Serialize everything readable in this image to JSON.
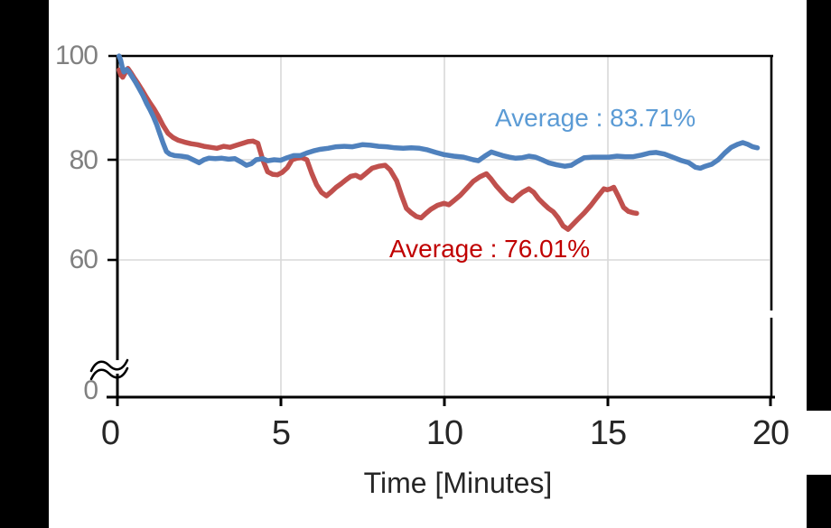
{
  "chart_data": {
    "type": "line",
    "title": "",
    "xlabel": "Time [Minutes]",
    "ylabel": "",
    "x_tick_labels": [
      "0",
      "5",
      "10",
      "15",
      "20"
    ],
    "y_tick_labels": [
      "100",
      "80",
      "60",
      "0"
    ],
    "xlim": [
      0,
      20
    ],
    "ylim": [
      0,
      100
    ],
    "y_axis_break": "axis broken between 0 and ~55 (wavy break mark on y-axis)",
    "grid": true,
    "legend_position": "none (inline colored annotations)",
    "series": [
      {
        "name": "series-blue",
        "color": "#4F81BD",
        "average_percent": 83.71,
        "annotation": {
          "text": "Average : 83.71%",
          "color": "#5B9BD5"
        },
        "points": [
          [
            0.05,
            100
          ],
          [
            0.1,
            99.2
          ],
          [
            0.15,
            97.8
          ],
          [
            0.2,
            96.9
          ],
          [
            0.28,
            97.4
          ],
          [
            0.35,
            97.0
          ],
          [
            0.45,
            96.0
          ],
          [
            0.55,
            95.0
          ],
          [
            0.65,
            93.9
          ],
          [
            0.78,
            92.4
          ],
          [
            0.9,
            90.8
          ],
          [
            1.0,
            89.6
          ],
          [
            1.1,
            88.3
          ],
          [
            1.2,
            86.8
          ],
          [
            1.3,
            85.0
          ],
          [
            1.4,
            83.2
          ],
          [
            1.5,
            81.6
          ],
          [
            1.6,
            81.1
          ],
          [
            1.75,
            80.8
          ],
          [
            1.95,
            80.7
          ],
          [
            2.15,
            80.5
          ],
          [
            2.35,
            79.9
          ],
          [
            2.5,
            79.4
          ],
          [
            2.65,
            80.0
          ],
          [
            2.8,
            80.3
          ],
          [
            3.0,
            80.2
          ],
          [
            3.2,
            80.3
          ],
          [
            3.4,
            80.1
          ],
          [
            3.6,
            80.2
          ],
          [
            3.8,
            79.5
          ],
          [
            3.95,
            78.9
          ],
          [
            4.1,
            79.2
          ],
          [
            4.25,
            80.0
          ],
          [
            4.45,
            80.2
          ],
          [
            4.6,
            79.8
          ],
          [
            4.8,
            80.0
          ],
          [
            5.0,
            79.9
          ],
          [
            5.2,
            80.4
          ],
          [
            5.4,
            80.8
          ],
          [
            5.6,
            80.8
          ],
          [
            5.8,
            81.3
          ],
          [
            6.0,
            81.7
          ],
          [
            6.2,
            82.0
          ],
          [
            6.45,
            82.2
          ],
          [
            6.7,
            82.5
          ],
          [
            6.95,
            82.6
          ],
          [
            7.2,
            82.5
          ],
          [
            7.5,
            82.9
          ],
          [
            7.75,
            82.8
          ],
          [
            8.0,
            82.6
          ],
          [
            8.25,
            82.5
          ],
          [
            8.5,
            82.3
          ],
          [
            8.75,
            82.2
          ],
          [
            9.0,
            82.3
          ],
          [
            9.25,
            82.2
          ],
          [
            9.5,
            81.9
          ],
          [
            9.75,
            81.4
          ],
          [
            10.0,
            81.0
          ],
          [
            10.3,
            80.7
          ],
          [
            10.6,
            80.5
          ],
          [
            10.9,
            80.0
          ],
          [
            11.05,
            79.8
          ],
          [
            11.25,
            80.7
          ],
          [
            11.45,
            81.5
          ],
          [
            11.6,
            81.2
          ],
          [
            11.8,
            80.8
          ],
          [
            12.0,
            80.5
          ],
          [
            12.2,
            80.3
          ],
          [
            12.4,
            80.4
          ],
          [
            12.6,
            80.7
          ],
          [
            12.8,
            80.5
          ],
          [
            13.0,
            80.0
          ],
          [
            13.2,
            79.4
          ],
          [
            13.45,
            79.0
          ],
          [
            13.7,
            78.7
          ],
          [
            13.9,
            78.9
          ],
          [
            14.1,
            79.7
          ],
          [
            14.3,
            80.4
          ],
          [
            14.55,
            80.5
          ],
          [
            14.8,
            80.5
          ],
          [
            15.05,
            80.5
          ],
          [
            15.3,
            80.7
          ],
          [
            15.55,
            80.6
          ],
          [
            15.8,
            80.6
          ],
          [
            16.05,
            80.9
          ],
          [
            16.3,
            81.3
          ],
          [
            16.5,
            81.4
          ],
          [
            16.75,
            81.1
          ],
          [
            17.0,
            80.5
          ],
          [
            17.25,
            79.9
          ],
          [
            17.5,
            79.4
          ],
          [
            17.7,
            78.5
          ],
          [
            17.85,
            78.3
          ],
          [
            18.0,
            78.7
          ],
          [
            18.2,
            79.1
          ],
          [
            18.4,
            80.0
          ],
          [
            18.6,
            81.3
          ],
          [
            18.8,
            82.4
          ],
          [
            19.0,
            83.0
          ],
          [
            19.15,
            83.3
          ],
          [
            19.3,
            83.0
          ],
          [
            19.45,
            82.5
          ],
          [
            19.6,
            82.3
          ]
        ]
      },
      {
        "name": "series-red",
        "color": "#C0504D",
        "average_percent": 76.01,
        "annotation": {
          "text": "Average : 76.01%",
          "color": "#C00000"
        },
        "points": [
          [
            0.05,
            97.3
          ],
          [
            0.1,
            96.4
          ],
          [
            0.16,
            95.9
          ],
          [
            0.24,
            96.8
          ],
          [
            0.32,
            97.6
          ],
          [
            0.42,
            96.7
          ],
          [
            0.52,
            95.7
          ],
          [
            0.62,
            94.8
          ],
          [
            0.75,
            93.5
          ],
          [
            0.88,
            92.1
          ],
          [
            1.0,
            90.9
          ],
          [
            1.12,
            89.8
          ],
          [
            1.25,
            88.4
          ],
          [
            1.4,
            86.6
          ],
          [
            1.55,
            85.1
          ],
          [
            1.7,
            84.3
          ],
          [
            1.85,
            83.8
          ],
          [
            2.05,
            83.4
          ],
          [
            2.25,
            83.1
          ],
          [
            2.45,
            82.9
          ],
          [
            2.65,
            82.6
          ],
          [
            2.85,
            82.4
          ],
          [
            3.05,
            82.2
          ],
          [
            3.25,
            82.6
          ],
          [
            3.45,
            82.4
          ],
          [
            3.65,
            82.8
          ],
          [
            3.85,
            83.2
          ],
          [
            4.0,
            83.5
          ],
          [
            4.15,
            83.6
          ],
          [
            4.3,
            83.2
          ],
          [
            4.45,
            80.0
          ],
          [
            4.6,
            77.6
          ],
          [
            4.75,
            77.1
          ],
          [
            4.9,
            77.0
          ],
          [
            5.05,
            77.5
          ],
          [
            5.2,
            78.4
          ],
          [
            5.35,
            80.0
          ],
          [
            5.5,
            80.3
          ],
          [
            5.65,
            80.4
          ],
          [
            5.8,
            80.0
          ],
          [
            5.95,
            77.3
          ],
          [
            6.1,
            75.0
          ],
          [
            6.25,
            73.5
          ],
          [
            6.4,
            72.8
          ],
          [
            6.55,
            73.6
          ],
          [
            6.7,
            74.5
          ],
          [
            6.85,
            75.2
          ],
          [
            7.0,
            76.0
          ],
          [
            7.15,
            76.7
          ],
          [
            7.3,
            76.9
          ],
          [
            7.45,
            76.4
          ],
          [
            7.6,
            77.2
          ],
          [
            7.8,
            78.3
          ],
          [
            8.0,
            78.7
          ],
          [
            8.2,
            78.9
          ],
          [
            8.35,
            78.0
          ],
          [
            8.55,
            75.8
          ],
          [
            8.7,
            72.9
          ],
          [
            8.85,
            70.3
          ],
          [
            9.0,
            69.4
          ],
          [
            9.15,
            68.7
          ],
          [
            9.3,
            68.4
          ],
          [
            9.45,
            69.3
          ],
          [
            9.6,
            70.1
          ],
          [
            9.8,
            70.9
          ],
          [
            10.0,
            71.3
          ],
          [
            10.15,
            71.0
          ],
          [
            10.3,
            71.8
          ],
          [
            10.5,
            72.9
          ],
          [
            10.7,
            74.3
          ],
          [
            10.9,
            75.7
          ],
          [
            11.1,
            76.6
          ],
          [
            11.3,
            77.2
          ],
          [
            11.45,
            76.1
          ],
          [
            11.6,
            74.8
          ],
          [
            11.75,
            73.7
          ],
          [
            11.95,
            72.3
          ],
          [
            12.1,
            71.8
          ],
          [
            12.25,
            72.7
          ],
          [
            12.4,
            73.5
          ],
          [
            12.6,
            74.2
          ],
          [
            12.75,
            73.5
          ],
          [
            12.9,
            72.2
          ],
          [
            13.05,
            71.2
          ],
          [
            13.2,
            70.3
          ],
          [
            13.35,
            69.6
          ],
          [
            13.5,
            68.4
          ],
          [
            13.65,
            66.8
          ],
          [
            13.8,
            66.1
          ],
          [
            13.95,
            67.1
          ],
          [
            14.1,
            68.1
          ],
          [
            14.3,
            69.4
          ],
          [
            14.5,
            70.9
          ],
          [
            14.7,
            72.6
          ],
          [
            14.9,
            74.2
          ],
          [
            15.0,
            74.0
          ],
          [
            15.1,
            74.2
          ],
          [
            15.2,
            74.5
          ],
          [
            15.35,
            72.6
          ],
          [
            15.5,
            70.5
          ],
          [
            15.65,
            69.7
          ],
          [
            15.8,
            69.4
          ],
          [
            15.9,
            69.3
          ]
        ]
      }
    ]
  },
  "colors": {
    "axis": "#000000",
    "grid": "#D9D9D9",
    "x_tick_label": "#262626",
    "y_tick_label": "#808080",
    "background": "#FFFFFF",
    "side_bars": "#000000"
  }
}
